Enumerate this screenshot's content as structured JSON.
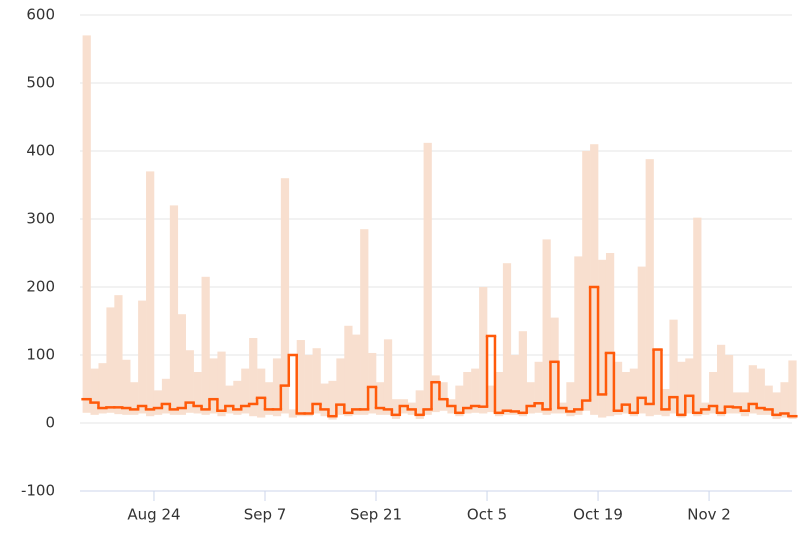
{
  "chart_data": {
    "type": "step-range",
    "x": [
      "Aug 15",
      "Aug 16",
      "Aug 17",
      "Aug 18",
      "Aug 19",
      "Aug 20",
      "Aug 21",
      "Aug 22",
      "Aug 23",
      "Aug 24",
      "Aug 25",
      "Aug 26",
      "Aug 27",
      "Aug 28",
      "Aug 29",
      "Aug 30",
      "Aug 31",
      "Sep 1",
      "Sep 2",
      "Sep 3",
      "Sep 4",
      "Sep 5",
      "Sep 6",
      "Sep 7",
      "Sep 8",
      "Sep 9",
      "Sep 10",
      "Sep 11",
      "Sep 12",
      "Sep 13",
      "Sep 14",
      "Sep 15",
      "Sep 16",
      "Sep 17",
      "Sep 18",
      "Sep 19",
      "Sep 20",
      "Sep 21",
      "Sep 22",
      "Sep 23",
      "Sep 24",
      "Sep 25",
      "Sep 26",
      "Sep 27",
      "Sep 28",
      "Sep 29",
      "Sep 30",
      "Oct 1",
      "Oct 2",
      "Oct 3",
      "Oct 4",
      "Oct 5",
      "Oct 6",
      "Oct 7",
      "Oct 8",
      "Oct 9",
      "Oct 10",
      "Oct 11",
      "Oct 12",
      "Oct 13",
      "Oct 14",
      "Oct 15",
      "Oct 16",
      "Oct 17",
      "Oct 18",
      "Oct 19",
      "Oct 20",
      "Oct 21",
      "Oct 22",
      "Oct 23",
      "Oct 24",
      "Oct 25",
      "Oct 26",
      "Oct 27",
      "Oct 28",
      "Oct 29",
      "Oct 30",
      "Oct 31",
      "Nov 1",
      "Nov 2",
      "Nov 3",
      "Nov 4",
      "Nov 5",
      "Nov 6",
      "Nov 7",
      "Nov 8",
      "Nov 9",
      "Nov 10",
      "Nov 11",
      "Nov 12"
    ],
    "xticks": [
      "Aug 24",
      "Sep 7",
      "Sep 21",
      "Oct 5",
      "Oct 19",
      "Nov 2"
    ],
    "line": {
      "color": "#ff5a0a",
      "values": [
        35,
        30,
        22,
        23,
        23,
        22,
        20,
        25,
        20,
        22,
        28,
        20,
        22,
        30,
        25,
        20,
        35,
        18,
        25,
        20,
        25,
        28,
        37,
        20,
        20,
        55,
        100,
        14,
        14,
        28,
        20,
        10,
        27,
        15,
        20,
        20,
        53,
        22,
        20,
        12,
        25,
        20,
        12,
        20,
        60,
        35,
        25,
        15,
        22,
        25,
        24,
        128,
        15,
        18,
        17,
        15,
        25,
        29,
        20,
        90,
        22,
        17,
        20,
        33,
        200,
        42,
        103,
        18,
        27,
        15,
        37,
        28,
        108,
        20,
        38,
        12,
        40,
        15,
        20,
        25,
        15,
        24,
        23,
        18,
        28,
        22,
        20,
        12,
        14,
        10
      ]
    },
    "band": {
      "color": "#f8dfcf",
      "low": [
        15,
        12,
        14,
        15,
        13,
        12,
        12,
        14,
        10,
        12,
        14,
        12,
        12,
        15,
        14,
        12,
        14,
        10,
        14,
        12,
        14,
        10,
        8,
        12,
        10,
        14,
        8,
        10,
        10,
        14,
        10,
        5,
        12,
        10,
        12,
        12,
        14,
        12,
        12,
        6,
        14,
        12,
        6,
        12,
        16,
        18,
        14,
        10,
        14,
        15,
        14,
        16,
        10,
        12,
        12,
        10,
        14,
        15,
        12,
        14,
        14,
        10,
        12,
        18,
        12,
        8,
        10,
        12,
        14,
        10,
        14,
        10,
        12,
        10,
        14,
        8,
        14,
        10,
        12,
        14,
        10,
        14,
        14,
        10,
        14,
        12,
        12,
        6,
        8,
        6
      ],
      "high": [
        570,
        80,
        88,
        170,
        188,
        93,
        60,
        180,
        370,
        48,
        65,
        320,
        160,
        107,
        75,
        215,
        95,
        105,
        55,
        62,
        80,
        125,
        80,
        60,
        95,
        360,
        20,
        122,
        100,
        110,
        58,
        62,
        95,
        143,
        130,
        285,
        103,
        60,
        123,
        35,
        35,
        30,
        48,
        412,
        70,
        60,
        35,
        55,
        75,
        80,
        200,
        55,
        75,
        235,
        100,
        135,
        60,
        90,
        270,
        155,
        30,
        60,
        245,
        400,
        410,
        240,
        250,
        90,
        75,
        80,
        230,
        388,
        110,
        50,
        152,
        90,
        95,
        302,
        30,
        75,
        115,
        100,
        45,
        45,
        85,
        80,
        55,
        45,
        60,
        92
      ]
    },
    "ylim": [
      -100,
      600
    ],
    "yticks": [
      -100,
      0,
      100,
      200,
      300,
      400,
      500,
      600
    ],
    "grid": true
  }
}
